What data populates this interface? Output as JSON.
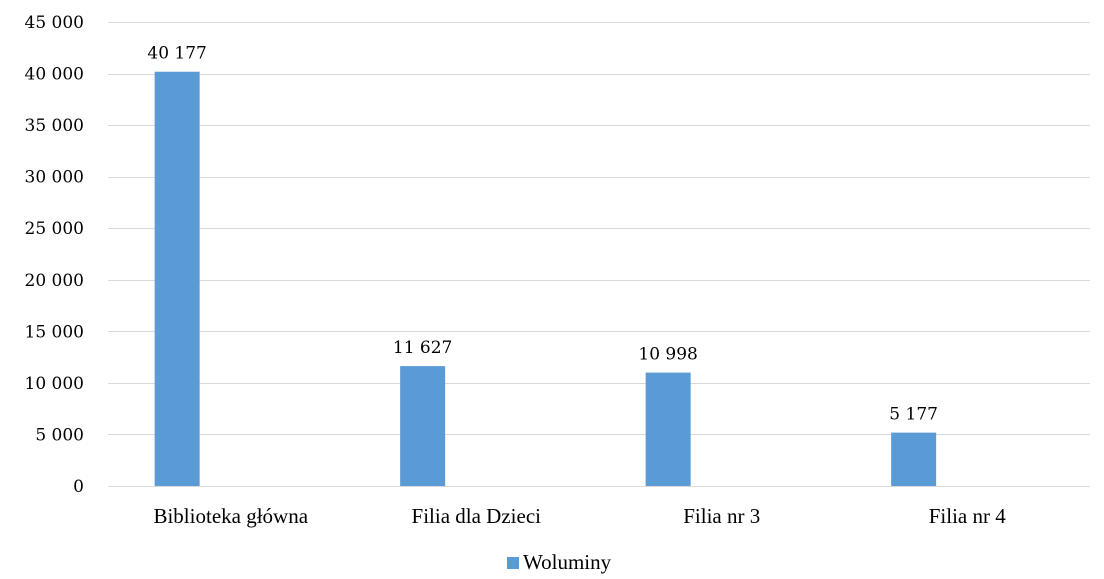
{
  "chart_data": {
    "type": "bar",
    "title": "",
    "xlabel": "",
    "ylabel": "",
    "categories": [
      "Biblioteka główna",
      "Filia dla Dzieci",
      "Filia nr 3",
      "Filia nr 4"
    ],
    "series": [
      {
        "name": "Woluminy",
        "values": [
          40177,
          11627,
          10998,
          5177
        ],
        "value_labels": [
          "40 177",
          "11 627",
          "10 998",
          "5 177"
        ],
        "color": "#5b9bd5"
      }
    ],
    "ylim": [
      0,
      45000
    ],
    "ytick_values": [
      0,
      5000,
      10000,
      15000,
      20000,
      25000,
      30000,
      35000,
      40000,
      45000
    ],
    "ytick_labels": [
      "0",
      "5 000",
      "10 000",
      "15 000",
      "20 000",
      "25 000",
      "30 000",
      "35 000",
      "40 000",
      "45 000"
    ],
    "grid": true,
    "legend": "bottom-center"
  }
}
